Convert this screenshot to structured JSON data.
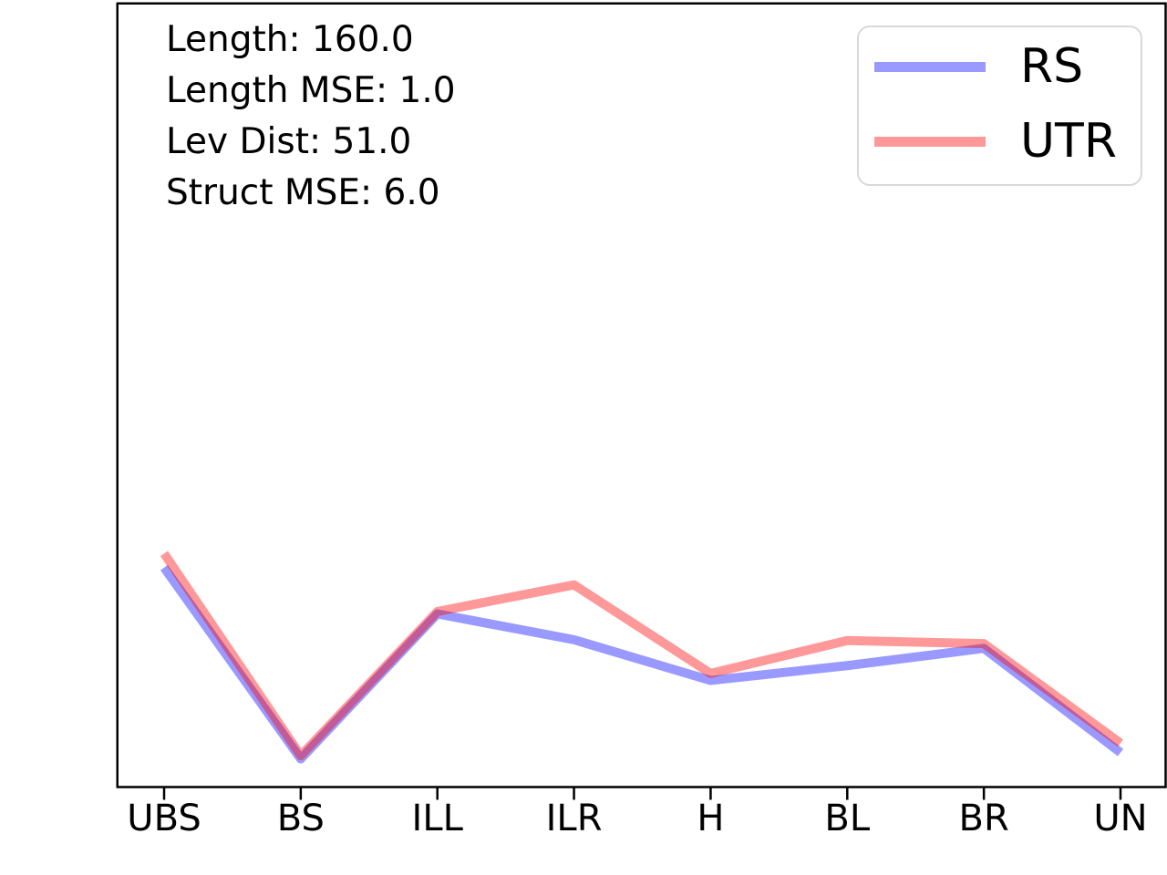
{
  "annotations": [
    "Length: 160.0",
    "Length MSE: 1.0",
    "Lev Dist: 51.0",
    "Struct MSE: 6.0"
  ],
  "chart_data": {
    "type": "line",
    "title": "",
    "xlabel": "",
    "ylabel": "",
    "categories": [
      "UBS",
      "BS",
      "ILL",
      "ILR",
      "H",
      "BL",
      "BR",
      "UN"
    ],
    "series": [
      {
        "name": "RS",
        "color": "#0000ff",
        "opacity": 0.4,
        "values": [
          0.28,
          0.036,
          0.221,
          0.188,
          0.136,
          0.155,
          0.177,
          0.044
        ]
      },
      {
        "name": "UTR",
        "color": "#ff0000",
        "opacity": 0.4,
        "values": [
          0.298,
          0.04,
          0.224,
          0.258,
          0.145,
          0.187,
          0.183,
          0.056
        ]
      }
    ],
    "y_axis": "no tick labels shown; values are estimated fractions of plot height (0 = x-axis, 1 = top border)",
    "legend_position": "upper right",
    "grid": false,
    "plot_border": "#000000",
    "background": "#ffffff"
  }
}
